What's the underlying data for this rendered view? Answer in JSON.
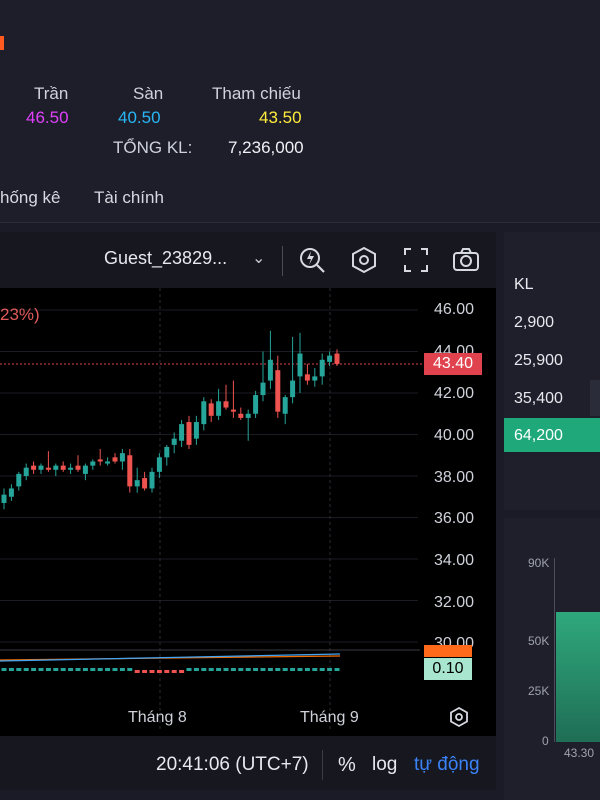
{
  "header": {
    "ceiling": {
      "label": "Trần",
      "value": "46.50",
      "color": "#e040fb"
    },
    "floor": {
      "label": "Sàn",
      "value": "40.50",
      "color": "#29b6f6"
    },
    "reference": {
      "label": "Tham chiếu",
      "value": "43.50",
      "color": "#ffeb3b"
    },
    "total_volume": {
      "label": "TỔNG KL:",
      "value": "7,236,000"
    }
  },
  "tabs": [
    "hống kê",
    "Tài chính"
  ],
  "chart_toolbar": {
    "user_label": "Guest_23829...",
    "icons": [
      "lightning-magnifier-icon",
      "hexagon-settings-icon",
      "fullscreen-icon",
      "camera-icon"
    ]
  },
  "chart": {
    "change_text": "23%)",
    "last_price_tag": "43.40",
    "indicator_value": "0.10",
    "time_labels": [
      "Tháng 8",
      "Tháng 9"
    ],
    "settings_icon": "hexagon-settings-icon"
  },
  "chart_data": {
    "type": "candlestick",
    "y_ticks": [
      "46.00",
      "44.00",
      "42.00",
      "40.00",
      "38.00",
      "36.00",
      "34.00",
      "32.00",
      "30.00"
    ],
    "ylim": [
      30,
      46
    ],
    "last_price": 43.4,
    "candles": [
      {
        "o": 36.7,
        "h": 37.4,
        "l": 36.4,
        "c": 37.1,
        "dir": "up"
      },
      {
        "o": 37.0,
        "h": 37.6,
        "l": 36.8,
        "c": 37.4,
        "dir": "up"
      },
      {
        "o": 37.5,
        "h": 38.2,
        "l": 37.3,
        "c": 38.1,
        "dir": "up"
      },
      {
        "o": 38.0,
        "h": 38.6,
        "l": 37.8,
        "c": 38.4,
        "dir": "up"
      },
      {
        "o": 38.5,
        "h": 38.7,
        "l": 38.1,
        "c": 38.3,
        "dir": "down"
      },
      {
        "o": 38.3,
        "h": 38.6,
        "l": 38.1,
        "c": 38.5,
        "dir": "up"
      },
      {
        "o": 38.4,
        "h": 39.2,
        "l": 38.2,
        "c": 38.3,
        "dir": "down"
      },
      {
        "o": 38.3,
        "h": 38.6,
        "l": 38.0,
        "c": 38.5,
        "dir": "up"
      },
      {
        "o": 38.5,
        "h": 38.7,
        "l": 38.2,
        "c": 38.3,
        "dir": "down"
      },
      {
        "o": 38.3,
        "h": 38.6,
        "l": 38.1,
        "c": 38.4,
        "dir": "up"
      },
      {
        "o": 38.5,
        "h": 39.0,
        "l": 38.2,
        "c": 38.3,
        "dir": "down"
      },
      {
        "o": 38.1,
        "h": 38.6,
        "l": 37.8,
        "c": 38.5,
        "dir": "up"
      },
      {
        "o": 38.5,
        "h": 38.8,
        "l": 38.3,
        "c": 38.7,
        "dir": "up"
      },
      {
        "o": 38.8,
        "h": 39.3,
        "l": 38.5,
        "c": 38.7,
        "dir": "down"
      },
      {
        "o": 38.6,
        "h": 38.9,
        "l": 38.5,
        "c": 38.7,
        "dir": "up"
      },
      {
        "o": 38.9,
        "h": 39.1,
        "l": 38.6,
        "c": 38.7,
        "dir": "down"
      },
      {
        "o": 38.7,
        "h": 39.3,
        "l": 38.3,
        "c": 39.1,
        "dir": "up"
      },
      {
        "o": 39.0,
        "h": 39.3,
        "l": 37.2,
        "c": 37.5,
        "dir": "down"
      },
      {
        "o": 37.5,
        "h": 38.4,
        "l": 37.2,
        "c": 37.8,
        "dir": "up"
      },
      {
        "o": 37.9,
        "h": 38.2,
        "l": 37.3,
        "c": 37.4,
        "dir": "down"
      },
      {
        "o": 37.4,
        "h": 38.4,
        "l": 37.2,
        "c": 38.2,
        "dir": "up"
      },
      {
        "o": 38.2,
        "h": 39.1,
        "l": 37.9,
        "c": 38.9,
        "dir": "up"
      },
      {
        "o": 38.9,
        "h": 39.5,
        "l": 38.5,
        "c": 39.4,
        "dir": "up"
      },
      {
        "o": 39.5,
        "h": 40.1,
        "l": 39.1,
        "c": 39.8,
        "dir": "up"
      },
      {
        "o": 39.7,
        "h": 40.7,
        "l": 39.4,
        "c": 40.5,
        "dir": "up"
      },
      {
        "o": 40.6,
        "h": 40.9,
        "l": 39.3,
        "c": 39.5,
        "dir": "down"
      },
      {
        "o": 39.8,
        "h": 40.9,
        "l": 39.5,
        "c": 40.6,
        "dir": "up"
      },
      {
        "o": 40.5,
        "h": 41.8,
        "l": 40.2,
        "c": 41.6,
        "dir": "up"
      },
      {
        "o": 41.5,
        "h": 41.7,
        "l": 40.6,
        "c": 40.9,
        "dir": "down"
      },
      {
        "o": 40.9,
        "h": 42.2,
        "l": 40.7,
        "c": 41.6,
        "dir": "up"
      },
      {
        "o": 41.6,
        "h": 42.4,
        "l": 41.2,
        "c": 41.3,
        "dir": "down"
      },
      {
        "o": 41.2,
        "h": 42.6,
        "l": 40.8,
        "c": 41.1,
        "dir": "down"
      },
      {
        "o": 41.0,
        "h": 41.3,
        "l": 40.7,
        "c": 40.8,
        "dir": "down"
      },
      {
        "o": 40.8,
        "h": 41.2,
        "l": 39.7,
        "c": 41.0,
        "dir": "up"
      },
      {
        "o": 41.0,
        "h": 42.1,
        "l": 40.8,
        "c": 41.9,
        "dir": "up"
      },
      {
        "o": 41.9,
        "h": 44.0,
        "l": 41.6,
        "c": 42.5,
        "dir": "up"
      },
      {
        "o": 42.6,
        "h": 45.0,
        "l": 42.2,
        "c": 43.6,
        "dir": "up"
      },
      {
        "o": 43.1,
        "h": 43.8,
        "l": 40.8,
        "c": 41.1,
        "dir": "down"
      },
      {
        "o": 41.0,
        "h": 41.9,
        "l": 40.5,
        "c": 41.8,
        "dir": "up"
      },
      {
        "o": 41.8,
        "h": 44.7,
        "l": 41.5,
        "c": 42.6,
        "dir": "up"
      },
      {
        "o": 42.8,
        "h": 44.9,
        "l": 42.0,
        "c": 43.9,
        "dir": "up"
      },
      {
        "o": 42.9,
        "h": 43.4,
        "l": 42.4,
        "c": 42.6,
        "dir": "down"
      },
      {
        "o": 42.6,
        "h": 43.2,
        "l": 42.3,
        "c": 42.8,
        "dir": "up"
      },
      {
        "o": 42.8,
        "h": 43.9,
        "l": 42.4,
        "c": 43.6,
        "dir": "up"
      },
      {
        "o": 43.5,
        "h": 44.0,
        "l": 43.3,
        "c": 43.8,
        "dir": "up"
      },
      {
        "o": 43.9,
        "h": 44.1,
        "l": 43.3,
        "c": 43.4,
        "dir": "down"
      }
    ]
  },
  "footer": {
    "time": "20:41:06 (UTC+7)",
    "percent": "%",
    "log": "log",
    "auto": "tự động"
  },
  "right_panel": {
    "header": "KL",
    "rows": [
      "2,900",
      "25,900",
      "35,400",
      "64,200"
    ]
  },
  "volume_panel": {
    "y_labels": [
      "90K",
      "50K",
      "25K",
      "0"
    ],
    "x_label": "43.30"
  }
}
